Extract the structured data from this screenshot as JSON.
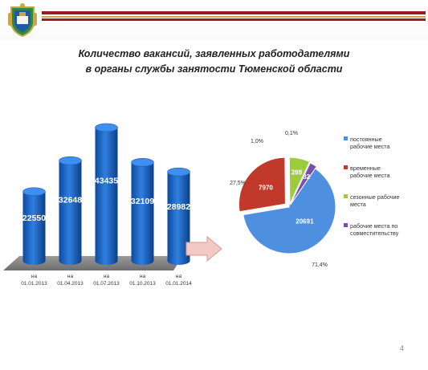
{
  "header": {
    "emblem_icon": "tyumen-coat-of-arms-icon",
    "accent_colors": [
      "#9b1b1e",
      "#c9a64b"
    ]
  },
  "title_lines": [
    "Количество вакансий, заявленных работодателями",
    "в органы службы занятости Тюменской области"
  ],
  "arrow_icon": "right-arrow-icon",
  "page_number": "4",
  "chart_data": [
    {
      "type": "bar",
      "categories": [
        [
          "на",
          "01.01.2013"
        ],
        [
          "на",
          "01.04.2013"
        ],
        [
          "на",
          "01.07.2013"
        ],
        [
          "на",
          "01.10.2013"
        ],
        [
          "на",
          "01.01.2014"
        ]
      ],
      "values": [
        22550,
        32648,
        43435,
        32109,
        28982
      ],
      "value_labels": [
        "22550",
        "32648",
        "43435",
        "32109",
        "28982"
      ],
      "ylim": [
        0,
        45000
      ],
      "color": "#1565c8",
      "title": "",
      "xlabel": "",
      "ylabel": "",
      "grid": false
    },
    {
      "type": "pie",
      "slices": [
        {
          "label": "постоянные рабочие места",
          "value": 20691,
          "value_label": "20691",
          "percent_label": "71,4%",
          "color": "#4f8fe0"
        },
        {
          "label": "временные рабочие места",
          "value": 7970,
          "value_label": "7970",
          "percent_label": "27,5%",
          "color": "#c0392b"
        },
        {
          "label": "сезонные рабочие места",
          "value": 289,
          "value_label": "289",
          "percent_label": "1,0%",
          "color": "#9ccc3c"
        },
        {
          "label": "рабочие места по совместительству",
          "value": 32,
          "value_label": "32",
          "percent_label": "0,1%",
          "color": "#7a4fa8"
        }
      ],
      "legend_lines": [
        [
          "постоянные",
          "рабочие места"
        ],
        [
          "временные",
          "рабочие места"
        ],
        [
          "сезонные  рабочие",
          "места"
        ],
        [
          "рабочие места по",
          "совместительству"
        ]
      ],
      "legend_placement": "right"
    }
  ]
}
